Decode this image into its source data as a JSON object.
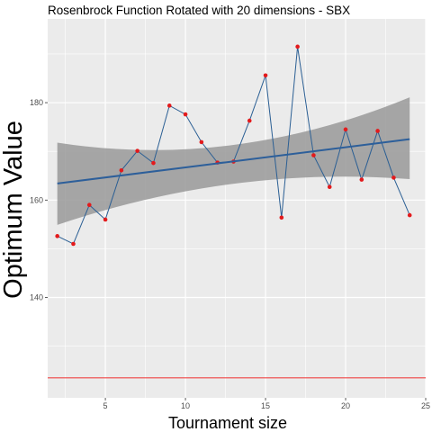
{
  "chart_data": {
    "type": "line",
    "title": "Rosenbrock Function Rotated with 20 dimensions -  SBX",
    "xlabel": "Tournament size",
    "ylabel": "Optimum Value",
    "xlim": [
      1.4,
      25.0
    ],
    "ylim": [
      119.4,
      197.2
    ],
    "xticks": [
      5,
      10,
      15,
      20,
      25
    ],
    "yticks": [
      140,
      160,
      180
    ],
    "grid": true,
    "legend": "none",
    "series": [
      {
        "x": [
          2,
          3,
          4,
          5,
          6,
          7,
          8,
          9,
          10,
          11,
          12,
          13,
          14,
          15,
          16,
          17,
          18,
          19,
          20,
          21,
          22,
          23,
          24
        ],
        "values": [
          152.6,
          151.0,
          159.0,
          156.0,
          166.1,
          170.1,
          167.6,
          179.4,
          177.6,
          171.9,
          167.7,
          167.9,
          176.3,
          185.6,
          156.4,
          191.5,
          169.2,
          162.7,
          174.5,
          164.2,
          174.2,
          164.6,
          156.9
        ],
        "line_color": "#2b5f94",
        "point_color": "#e31a1c"
      }
    ],
    "trend": {
      "x": [
        2,
        24
      ],
      "y": [
        163.4,
        172.5
      ],
      "band_lower": [
        154.9,
        164.3
      ],
      "band_mid_lower": [
        165.9,
        167.7
      ],
      "band_upper": [
        171.8,
        181.1
      ],
      "band_mid_upper": [
        167.4,
        173.0
      ],
      "band_mid_x": 13,
      "line_color": "#2d5f9a",
      "band_color": "#999999"
    },
    "reference_line": {
      "y": 123.5,
      "color": "#f04545"
    },
    "panel_color": "#ebebeb",
    "grid_color": "#ffffff"
  }
}
